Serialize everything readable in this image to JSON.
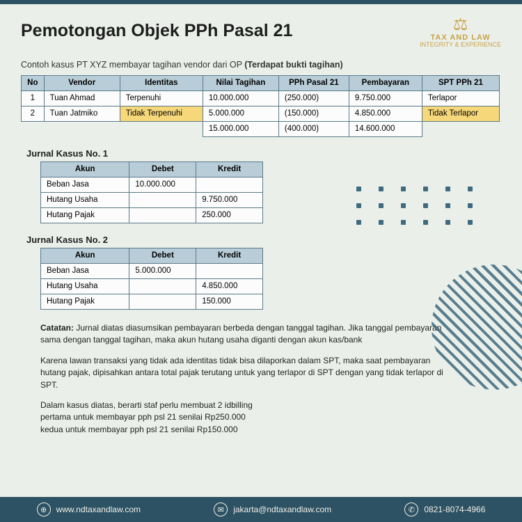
{
  "colors": {
    "page_bg": "#eaf0e9",
    "bar": "#2c5264",
    "header_cell": "#b8cdd8",
    "cell_border": "#5b7a8a",
    "cell_bg": "#fbfcfb",
    "highlight": "#f6d77a",
    "accent_gold": "#c9a24a",
    "dot": "#3f6a80"
  },
  "logo": {
    "brand": "TAX AND LAW",
    "tagline": "INTEGRITY & EXPERIENCE"
  },
  "title": "Pemotongan Objek PPh Pasal 21",
  "subtitle_plain": "Contoh kasus PT XYZ membayar tagihan vendor dari OP ",
  "subtitle_bold": "(Terdapat bukti tagihan)",
  "main_table": {
    "headers": [
      "No",
      "Vendor",
      "Identitas",
      "Nilai Tagihan",
      "PPh Pasal 21",
      "Pembayaran",
      "SPT PPh 21"
    ],
    "rows": [
      {
        "no": "1",
        "vendor": "Tuan Ahmad",
        "ident": "Terpenuhi",
        "ident_hl": false,
        "nilai": "10.000.000",
        "pph": "(250.000)",
        "bayar": "9.750.000",
        "spt": "Terlapor",
        "spt_hl": false
      },
      {
        "no": "2",
        "vendor": "Tuan Jatmiko",
        "ident": "Tidak Terpenuhi",
        "ident_hl": true,
        "nilai": "5.000.000",
        "pph": "(150.000)",
        "bayar": "4.850.000",
        "spt": "Tidak Terlapor",
        "spt_hl": true
      }
    ],
    "totals": {
      "nilai": "15.000.000",
      "pph": "(400.000)",
      "bayar": "14.600.000"
    }
  },
  "journal1": {
    "title": "Jurnal Kasus No. 1",
    "headers": [
      "Akun",
      "Debet",
      "Kredit"
    ],
    "rows": [
      {
        "akun": "Beban Jasa",
        "debet": "10.000.000",
        "kredit": ""
      },
      {
        "akun": "Hutang Usaha",
        "debet": "",
        "kredit": "9.750.000"
      },
      {
        "akun": "Hutang Pajak",
        "debet": "",
        "kredit": "250.000"
      }
    ]
  },
  "journal2": {
    "title": "Jurnal Kasus No. 2",
    "headers": [
      "Akun",
      "Debet",
      "Kredit"
    ],
    "rows": [
      {
        "akun": "Beban Jasa",
        "debet": "5.000.000",
        "kredit": ""
      },
      {
        "akun": "Hutang Usaha",
        "debet": "",
        "kredit": "4.850.000"
      },
      {
        "akun": "Hutang Pajak",
        "debet": "",
        "kredit": "150.000"
      }
    ]
  },
  "notes": {
    "p1_b": "Catatan: ",
    "p1": "Jurnal diatas diasumsikan pembayaran berbeda dengan tanggal tagihan. Jika tanggal pembayaran sama dengan tanggal tagihan, maka akun hutang usaha diganti dengan akun kas/bank",
    "p2": "Karena lawan transaksi yang tidak ada identitas tidak bisa dilaporkan dalam SPT, maka saat pembayaran hutang pajak, dipisahkan antara total pajak terutang untuk yang terlapor di SPT dengan yang tidak terlapor di SPT.",
    "p3": "Dalam kasus diatas, berarti staf perlu membuat 2 idbilling\npertama untuk membayar pph psl 21 senilai Rp250.000\nkedua untuk membayar pph psl 21 senilai Rp150.000"
  },
  "footer": {
    "web": "www.ndtaxandlaw.com",
    "email": "jakarta@ndtaxandlaw.com",
    "phone": "0821-8074-4966"
  },
  "decor": {
    "dot_cols": 6,
    "dot_rows": 3
  }
}
